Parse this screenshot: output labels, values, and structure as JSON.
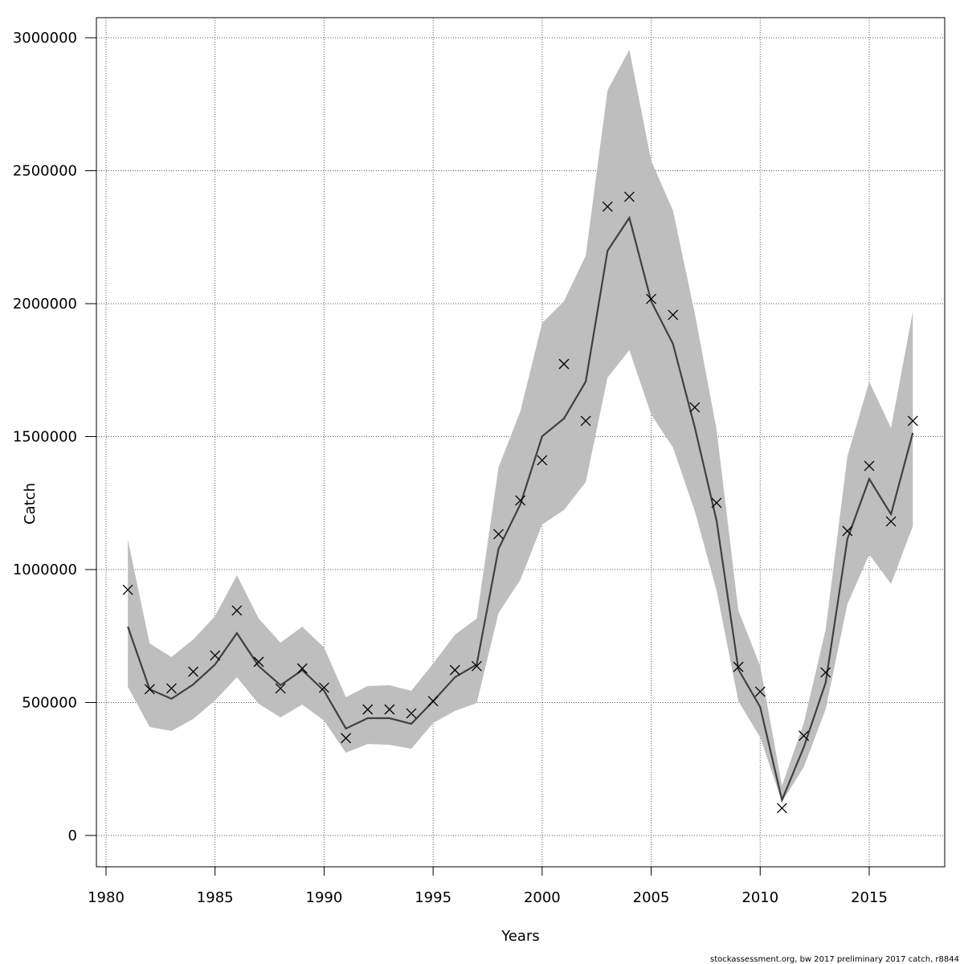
{
  "chart_data": {
    "type": "line",
    "title": "",
    "xlabel": "Years",
    "ylabel": "Catch",
    "xlim": [
      1980,
      2018
    ],
    "ylim": [
      0,
      3000000
    ],
    "xticks": [
      1980,
      1985,
      1990,
      1995,
      2000,
      2005,
      2010,
      2015
    ],
    "yticks": [
      0,
      500000,
      1000000,
      1500000,
      2000000,
      2500000,
      3000000
    ],
    "grid": true,
    "x": [
      1981,
      1982,
      1983,
      1984,
      1985,
      1986,
      1987,
      1988,
      1989,
      1990,
      1991,
      1992,
      1993,
      1994,
      1995,
      1996,
      1997,
      1998,
      1999,
      2000,
      2001,
      2002,
      2003,
      2004,
      2005,
      2006,
      2007,
      2008,
      2009,
      2010,
      2011,
      2012,
      2013,
      2014,
      2015,
      2016,
      2017
    ],
    "observed": [
      924000,
      550000,
      553000,
      616000,
      677000,
      846000,
      653000,
      553000,
      628000,
      556000,
      366000,
      474000,
      474000,
      459000,
      505000,
      622000,
      637000,
      1133000,
      1260000,
      1411000,
      1773000,
      1559000,
      2365000,
      2402000,
      2018000,
      1958000,
      1610000,
      1251000,
      634000,
      541000,
      103000,
      375000,
      613000,
      1145000,
      1390000,
      1181000,
      1559000
    ],
    "fitted": [
      785000,
      550000,
      514000,
      568000,
      643000,
      761000,
      637000,
      565000,
      622000,
      544000,
      402000,
      441000,
      441000,
      420000,
      505000,
      595000,
      643000,
      1078000,
      1245000,
      1501000,
      1568000,
      1707000,
      2199000,
      2323000,
      2009000,
      1849000,
      1535000,
      1184000,
      625000,
      483000,
      133000,
      332000,
      574000,
      1115000,
      1341000,
      1208000,
      1514000
    ],
    "upper": [
      1112000,
      722000,
      671000,
      737000,
      825000,
      979000,
      816000,
      725000,
      785000,
      707000,
      520000,
      562000,
      565000,
      544000,
      646000,
      755000,
      816000,
      1384000,
      1595000,
      1927000,
      2009000,
      2181000,
      2803000,
      2955000,
      2538000,
      2350000,
      1964000,
      1526000,
      846000,
      637000,
      187000,
      423000,
      773000,
      1426000,
      1707000,
      1532000,
      1970000
    ],
    "lower": [
      559000,
      408000,
      393000,
      438000,
      508000,
      595000,
      495000,
      444000,
      492000,
      432000,
      311000,
      344000,
      341000,
      326000,
      423000,
      468000,
      498000,
      837000,
      961000,
      1169000,
      1224000,
      1329000,
      1722000,
      1825000,
      1583000,
      1459000,
      1220000,
      921000,
      505000,
      369000,
      127000,
      257000,
      474000,
      870000,
      1057000,
      946000,
      1163000
    ],
    "colors": {
      "band": "#bebebe",
      "line": "#404040",
      "marker": "#000000",
      "grid": "#555555"
    }
  },
  "footer": "stockassessment.org, bw  2017  preliminary  2017  catch, r8844"
}
